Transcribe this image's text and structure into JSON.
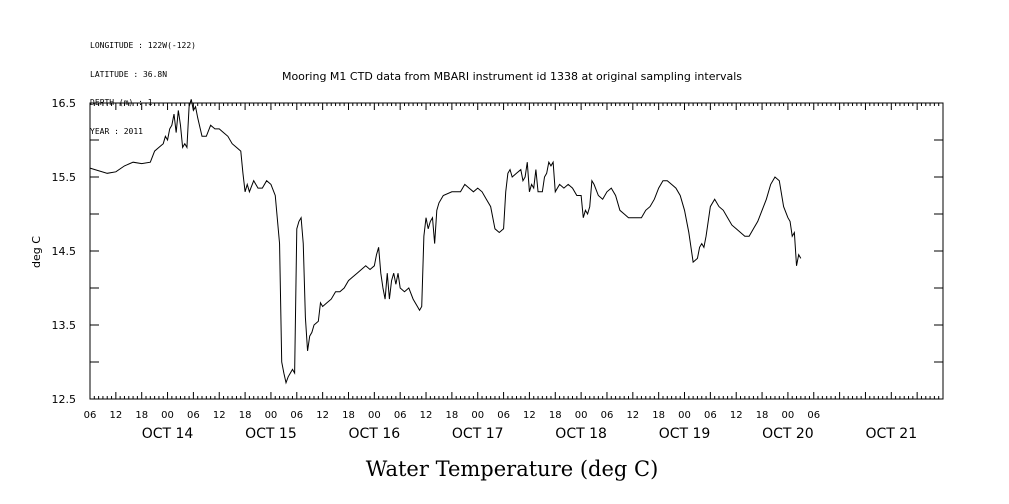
{
  "header": {
    "longitude": "LONGITUDE : 122W(-122)",
    "latitude": "LATITUDE : 36.8N",
    "depth": "DEPTH (m) : 1",
    "year": "YEAR : 2011"
  },
  "chart_data": {
    "type": "line",
    "title": "Mooring M1 CTD data from MBARI instrument id 1338 at original sampling intervals",
    "ylabel": "deg C",
    "xlabel": "Water Temperature (deg C)",
    "ylim": [
      12.5,
      16.5
    ],
    "yticks": [
      12.5,
      13.5,
      14.5,
      15.5,
      16.5
    ],
    "xlim_hours": [
      0,
      198
    ],
    "hour_tick_labels": [
      "06",
      "12",
      "18",
      "00",
      "06",
      "12",
      "18",
      "00",
      "06",
      "12",
      "18",
      "00",
      "06",
      "12",
      "18",
      "00",
      "06",
      "12",
      "18",
      "00",
      "06",
      "12",
      "18",
      "00",
      "06",
      "12",
      "18",
      "00",
      "06"
    ],
    "date_labels": [
      "OCT 14",
      "OCT 15",
      "OCT 16",
      "OCT 17",
      "OCT 18",
      "OCT 19",
      "OCT 20",
      "OCT 21"
    ],
    "grid": false,
    "series": [
      {
        "values": [
          [
            0,
            15.62
          ],
          [
            4,
            15.55
          ],
          [
            6,
            15.57
          ],
          [
            8,
            15.65
          ],
          [
            10,
            15.7
          ],
          [
            12,
            15.68
          ],
          [
            14,
            15.7
          ],
          [
            15,
            15.85
          ],
          [
            16,
            15.9
          ],
          [
            17,
            15.95
          ],
          [
            17.5,
            16.05
          ],
          [
            18,
            16.0
          ],
          [
            18.5,
            16.15
          ],
          [
            19,
            16.2
          ],
          [
            19.5,
            16.35
          ],
          [
            20,
            16.1
          ],
          [
            20.5,
            16.4
          ],
          [
            21,
            16.2
          ],
          [
            21.5,
            15.9
          ],
          [
            22,
            15.95
          ],
          [
            22.5,
            15.9
          ],
          [
            23,
            16.45
          ],
          [
            23.5,
            16.55
          ],
          [
            24,
            16.4
          ],
          [
            24.5,
            16.45
          ],
          [
            25,
            16.3
          ],
          [
            26,
            16.05
          ],
          [
            27,
            16.05
          ],
          [
            28,
            16.2
          ],
          [
            29,
            16.15
          ],
          [
            30,
            16.15
          ],
          [
            31,
            16.1
          ],
          [
            32,
            16.05
          ],
          [
            33,
            15.95
          ],
          [
            34,
            15.9
          ],
          [
            35,
            15.85
          ],
          [
            35.5,
            15.55
          ],
          [
            36,
            15.3
          ],
          [
            36.5,
            15.4
          ],
          [
            37,
            15.3
          ],
          [
            38,
            15.45
          ],
          [
            39,
            15.35
          ],
          [
            40,
            15.35
          ],
          [
            41,
            15.45
          ],
          [
            42,
            15.4
          ],
          [
            43,
            15.25
          ],
          [
            44,
            14.6
          ],
          [
            44.5,
            13.0
          ],
          [
            45,
            12.85
          ],
          [
            45.5,
            12.72
          ],
          [
            46,
            12.8
          ],
          [
            46.5,
            12.85
          ],
          [
            47,
            12.9
          ],
          [
            47.5,
            12.85
          ],
          [
            48,
            14.8
          ],
          [
            48.5,
            14.9
          ],
          [
            49,
            14.95
          ],
          [
            49.5,
            14.6
          ],
          [
            50,
            13.6
          ],
          [
            50.5,
            13.15
          ],
          [
            51,
            13.35
          ],
          [
            51.5,
            13.4
          ],
          [
            52,
            13.5
          ],
          [
            53,
            13.55
          ],
          [
            53.5,
            13.8
          ],
          [
            54,
            13.75
          ],
          [
            55,
            13.8
          ],
          [
            56,
            13.85
          ],
          [
            57,
            13.95
          ],
          [
            58,
            13.95
          ],
          [
            59,
            14.0
          ],
          [
            60,
            14.1
          ],
          [
            61,
            14.15
          ],
          [
            62,
            14.2
          ],
          [
            63,
            14.25
          ],
          [
            64,
            14.3
          ],
          [
            65,
            14.25
          ],
          [
            66,
            14.3
          ],
          [
            66.5,
            14.45
          ],
          [
            67,
            14.55
          ],
          [
            67.5,
            14.2
          ],
          [
            68,
            14.0
          ],
          [
            68.5,
            13.85
          ],
          [
            69,
            14.2
          ],
          [
            69.5,
            13.85
          ],
          [
            70,
            14.1
          ],
          [
            70.5,
            14.2
          ],
          [
            71,
            14.05
          ],
          [
            71.5,
            14.2
          ],
          [
            72,
            14.0
          ],
          [
            73,
            13.95
          ],
          [
            74,
            14.0
          ],
          [
            75,
            13.85
          ],
          [
            76,
            13.75
          ],
          [
            76.5,
            13.7
          ],
          [
            77,
            13.75
          ],
          [
            77.5,
            14.7
          ],
          [
            78,
            14.95
          ],
          [
            78.5,
            14.8
          ],
          [
            79,
            14.9
          ],
          [
            79.5,
            14.95
          ],
          [
            80,
            14.6
          ],
          [
            80.5,
            15.05
          ],
          [
            81,
            15.15
          ],
          [
            82,
            15.25
          ],
          [
            84,
            15.3
          ],
          [
            86,
            15.3
          ],
          [
            87,
            15.4
          ],
          [
            88,
            15.35
          ],
          [
            89,
            15.3
          ],
          [
            90,
            15.35
          ],
          [
            91,
            15.3
          ],
          [
            92,
            15.2
          ],
          [
            93,
            15.1
          ],
          [
            94,
            14.8
          ],
          [
            95,
            14.75
          ],
          [
            96,
            14.8
          ],
          [
            96.5,
            15.3
          ],
          [
            97,
            15.55
          ],
          [
            97.5,
            15.6
          ],
          [
            98,
            15.5
          ],
          [
            99,
            15.55
          ],
          [
            100,
            15.6
          ],
          [
            100.5,
            15.45
          ],
          [
            101,
            15.5
          ],
          [
            101.5,
            15.7
          ],
          [
            102,
            15.3
          ],
          [
            102.5,
            15.4
          ],
          [
            103,
            15.35
          ],
          [
            103.5,
            15.6
          ],
          [
            104,
            15.3
          ],
          [
            105,
            15.3
          ],
          [
            105.5,
            15.5
          ],
          [
            106,
            15.55
          ],
          [
            106.5,
            15.7
          ],
          [
            107,
            15.65
          ],
          [
            107.5,
            15.7
          ],
          [
            108,
            15.3
          ],
          [
            109,
            15.4
          ],
          [
            110,
            15.35
          ],
          [
            111,
            15.4
          ],
          [
            112,
            15.35
          ],
          [
            113,
            15.25
          ],
          [
            114,
            15.25
          ],
          [
            114.5,
            14.95
          ],
          [
            115,
            15.05
          ],
          [
            115.5,
            15.0
          ],
          [
            116,
            15.1
          ],
          [
            116.5,
            15.45
          ],
          [
            117,
            15.4
          ],
          [
            118,
            15.25
          ],
          [
            119,
            15.2
          ],
          [
            120,
            15.3
          ],
          [
            121,
            15.35
          ],
          [
            122,
            15.25
          ],
          [
            123,
            15.05
          ],
          [
            124,
            15.0
          ],
          [
            125,
            14.95
          ],
          [
            126,
            14.95
          ],
          [
            127,
            14.95
          ],
          [
            128,
            14.95
          ],
          [
            129,
            15.05
          ],
          [
            130,
            15.1
          ],
          [
            131,
            15.2
          ],
          [
            132,
            15.35
          ],
          [
            133,
            15.45
          ],
          [
            134,
            15.45
          ],
          [
            135,
            15.4
          ],
          [
            136,
            15.35
          ],
          [
            137,
            15.25
          ],
          [
            138,
            15.05
          ],
          [
            139,
            14.75
          ],
          [
            140,
            14.35
          ],
          [
            141,
            14.4
          ],
          [
            141.5,
            14.55
          ],
          [
            142,
            14.6
          ],
          [
            142.5,
            14.55
          ],
          [
            143,
            14.7
          ],
          [
            144,
            15.1
          ],
          [
            145,
            15.2
          ],
          [
            146,
            15.1
          ],
          [
            147,
            15.05
          ],
          [
            148,
            14.95
          ],
          [
            149,
            14.85
          ],
          [
            150,
            14.8
          ],
          [
            151,
            14.75
          ],
          [
            152,
            14.7
          ],
          [
            153,
            14.7
          ],
          [
            154,
            14.8
          ],
          [
            155,
            14.9
          ],
          [
            156,
            15.05
          ],
          [
            157,
            15.2
          ],
          [
            158,
            15.4
          ],
          [
            159,
            15.5
          ],
          [
            160,
            15.45
          ],
          [
            161,
            15.1
          ],
          [
            162,
            14.95
          ],
          [
            162.5,
            14.9
          ],
          [
            163,
            14.7
          ],
          [
            163.5,
            14.75
          ],
          [
            164,
            14.3
          ],
          [
            164.5,
            14.45
          ],
          [
            165,
            14.4
          ]
        ]
      }
    ]
  }
}
